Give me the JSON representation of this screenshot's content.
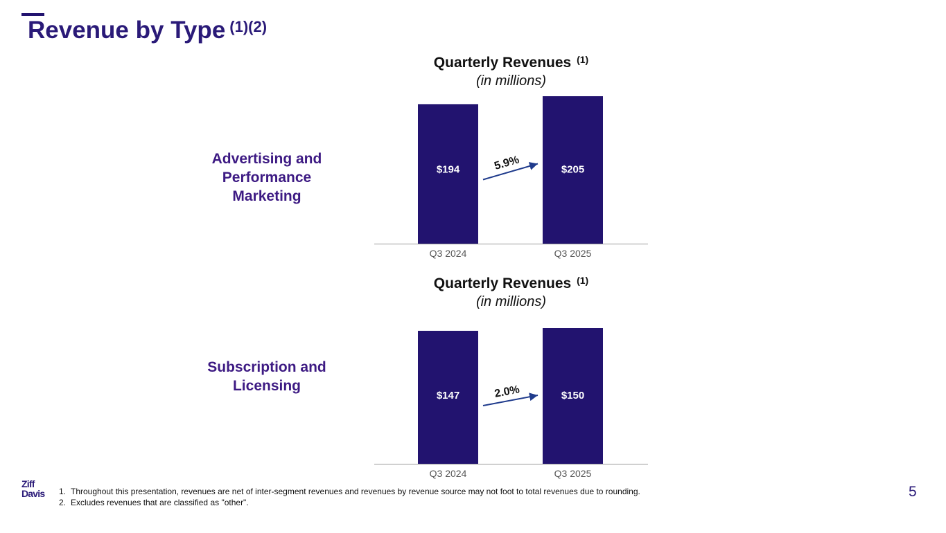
{
  "page": {
    "title": "Revenue by Type",
    "title_superscript": "(1)(2)",
    "page_number": "5"
  },
  "colors": {
    "bar": "#22136f",
    "heading": "#2a1a78",
    "segment_label": "#3d1a83",
    "arrow": "#1f3b8c"
  },
  "segments": [
    {
      "label_lines": [
        "Advertising and",
        "Performance",
        "Marketing"
      ]
    },
    {
      "label_lines": [
        "Subscription and",
        "Licensing"
      ]
    }
  ],
  "chart_data": [
    {
      "type": "bar",
      "title": "Quarterly Revenues",
      "title_superscript": "(1)",
      "subtitle": "(in millions)",
      "categories": [
        "Q3 2024",
        "Q3 2025"
      ],
      "values": [
        194,
        205
      ],
      "data_labels": [
        "$194",
        "$205"
      ],
      "growth_annotation": "5.9%",
      "ylim": [
        0,
        205
      ]
    },
    {
      "type": "bar",
      "title": "Quarterly Revenues",
      "title_superscript": "(1)",
      "subtitle": "(in millions)",
      "categories": [
        "Q3 2024",
        "Q3 2025"
      ],
      "values": [
        147,
        150
      ],
      "data_labels": [
        "$147",
        "$150"
      ],
      "growth_annotation": "2.0%",
      "ylim": [
        0,
        150
      ]
    }
  ],
  "logo": {
    "line1": "Ziff",
    "line2": "Davis"
  },
  "footnotes": [
    {
      "num": "1.",
      "text": "Throughout this presentation, revenues are net of inter-segment revenues and revenues by revenue source may not foot to total revenues due to rounding."
    },
    {
      "num": "2.",
      "text": "Excludes revenues that are classified as \"other\"."
    }
  ]
}
